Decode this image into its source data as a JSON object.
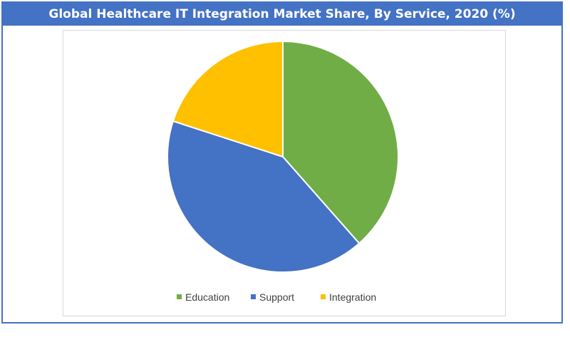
{
  "chart_data": {
    "type": "pie",
    "title": "Global Healthcare IT Integration Market Share, By Service, 2020 (%)",
    "categories": [
      "Education",
      "Support",
      "Integration"
    ],
    "values": [
      38.5,
      41.5,
      20.0
    ],
    "colors": [
      "#70ad47",
      "#4472c4",
      "#ffc000"
    ],
    "start_angle_deg": 0,
    "direction": "clockwise",
    "legend": "bottom",
    "data_labels": false
  },
  "theme": {
    "accent": "#4472c4",
    "slice_border": "#ffffff"
  }
}
